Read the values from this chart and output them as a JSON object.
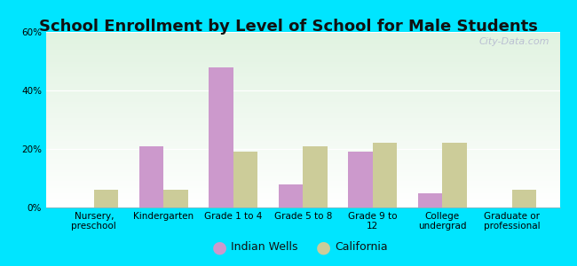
{
  "title": "School Enrollment by Level of School for Male Students",
  "categories": [
    "Nursery,\npreschool",
    "Kindergarten",
    "Grade 1 to 4",
    "Grade 5 to 8",
    "Grade 9 to\n12",
    "College\nundergrad",
    "Graduate or\nprofessional"
  ],
  "indian_wells": [
    0,
    21,
    48,
    8,
    19,
    5,
    0
  ],
  "california": [
    6,
    6,
    19,
    21,
    22,
    22,
    6
  ],
  "bar_color_iw": "#cc99cc",
  "bar_color_ca": "#cccc99",
  "legend_iw": "Indian Wells",
  "legend_ca": "California",
  "ylim": [
    0,
    60
  ],
  "yticks": [
    0,
    20,
    40,
    60
  ],
  "ytick_labels": [
    "0%",
    "20%",
    "40%",
    "60%"
  ],
  "background_outer": "#00e5ff",
  "bar_width": 0.35,
  "title_fontsize": 13,
  "tick_fontsize": 7.5,
  "legend_fontsize": 9,
  "watermark": "City-Data.com"
}
